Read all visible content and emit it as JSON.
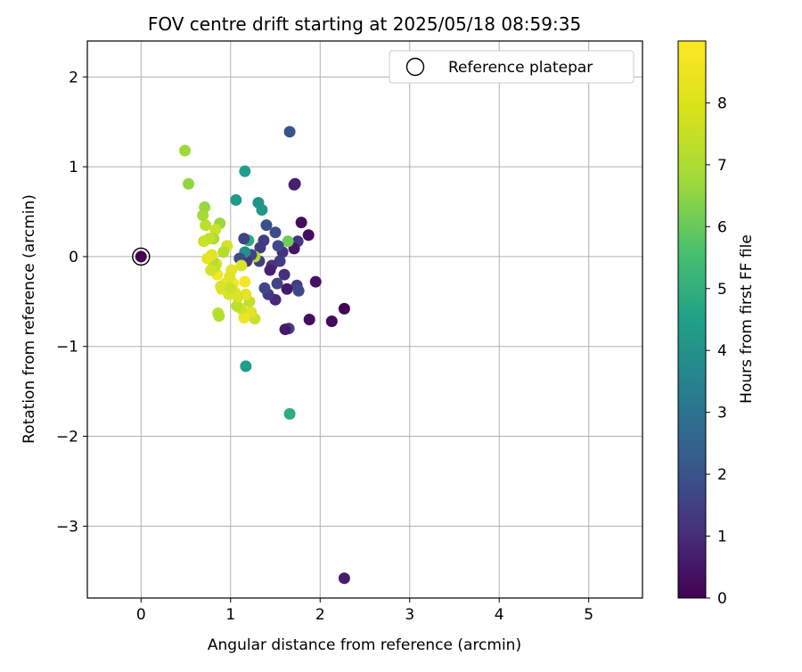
{
  "chart_data": {
    "type": "scatter",
    "title": "FOV centre drift starting at 2025/05/18 08:59:35",
    "xlabel": "Angular distance from reference (arcmin)",
    "ylabel": "Rotation from reference (arcmin)",
    "xlim": [
      -0.6,
      5.6
    ],
    "ylim": [
      -3.8,
      2.4
    ],
    "x_ticks": [
      0,
      1,
      2,
      3,
      4,
      5
    ],
    "x_tick_labels": [
      "0",
      "1",
      "2",
      "3",
      "4",
      "5"
    ],
    "y_ticks": [
      -3,
      -2,
      -1,
      0,
      1,
      2
    ],
    "y_tick_labels": [
      "−3",
      "−2",
      "−1",
      "0",
      "1",
      "2"
    ],
    "grid": true,
    "legend": {
      "placement": "top-right",
      "entries": [
        "Reference platepar"
      ]
    },
    "colorbar": {
      "label": "Hours from first FF file",
      "min": 0,
      "max": 9,
      "ticks": [
        0,
        1,
        2,
        3,
        4,
        5,
        6,
        7,
        8
      ],
      "tick_labels": [
        "0",
        "1",
        "2",
        "3",
        "4",
        "5",
        "6",
        "7",
        "8"
      ],
      "colormap": "viridis"
    },
    "reference_point": {
      "x": 0,
      "y": 0,
      "h": 0
    },
    "points": [
      {
        "x": 2.27,
        "y": -3.58,
        "h": 0.7
      },
      {
        "x": 2.27,
        "y": -0.58,
        "h": 0.1
      },
      {
        "x": 2.13,
        "y": -0.72,
        "h": 0.2
      },
      {
        "x": 1.88,
        "y": -0.7,
        "h": 0.3
      },
      {
        "x": 1.95,
        "y": -0.28,
        "h": 0.4
      },
      {
        "x": 1.87,
        "y": 0.24,
        "h": 0.3
      },
      {
        "x": 1.79,
        "y": 0.38,
        "h": 0.3
      },
      {
        "x": 1.72,
        "y": 0.81,
        "h": 0.5
      },
      {
        "x": 1.71,
        "y": 0.8,
        "h": 0.8
      },
      {
        "x": 1.66,
        "y": 1.39,
        "h": 2.3
      },
      {
        "x": 1.65,
        "y": -0.8,
        "h": 1.8
      },
      {
        "x": 1.61,
        "y": -0.81,
        "h": 0.6
      },
      {
        "x": 1.66,
        "y": -1.75,
        "h": 5.6
      },
      {
        "x": 1.17,
        "y": -1.22,
        "h": 5.0
      },
      {
        "x": 1.75,
        "y": 0.17,
        "h": 1.5
      },
      {
        "x": 1.71,
        "y": 0.09,
        "h": 0.5
      },
      {
        "x": 1.74,
        "y": -0.32,
        "h": 1.7
      },
      {
        "x": 1.76,
        "y": -0.38,
        "h": 1.9
      },
      {
        "x": 1.64,
        "y": 0.17,
        "h": 7.0
      },
      {
        "x": 1.63,
        "y": -0.36,
        "h": 0.6
      },
      {
        "x": 1.6,
        "y": -0.2,
        "h": 1.2
      },
      {
        "x": 1.58,
        "y": 0.05,
        "h": 1.3
      },
      {
        "x": 1.55,
        "y": -0.05,
        "h": 1.6
      },
      {
        "x": 1.52,
        "y": -0.3,
        "h": 1.8
      },
      {
        "x": 1.5,
        "y": -0.48,
        "h": 1.0
      },
      {
        "x": 1.53,
        "y": 0.12,
        "h": 2.0
      },
      {
        "x": 1.5,
        "y": 0.27,
        "h": 2.1
      },
      {
        "x": 1.46,
        "y": -0.1,
        "h": 1.4
      },
      {
        "x": 1.44,
        "y": -0.15,
        "h": 0.8
      },
      {
        "x": 1.42,
        "y": -0.42,
        "h": 1.5
      },
      {
        "x": 1.4,
        "y": 0.35,
        "h": 2.2
      },
      {
        "x": 1.38,
        "y": -0.35,
        "h": 1.9
      },
      {
        "x": 1.37,
        "y": 0.18,
        "h": 1.6
      },
      {
        "x": 1.35,
        "y": 0.52,
        "h": 4.8
      },
      {
        "x": 1.31,
        "y": 0.6,
        "h": 4.6
      },
      {
        "x": 1.33,
        "y": 0.1,
        "h": 1.5
      },
      {
        "x": 1.32,
        "y": -0.05,
        "h": 1.7
      },
      {
        "x": 1.27,
        "y": 0.0,
        "h": 8.0
      },
      {
        "x": 1.23,
        "y": 0.02,
        "h": 1.8
      },
      {
        "x": 1.2,
        "y": 0.18,
        "h": 5.5
      },
      {
        "x": 1.18,
        "y": -0.05,
        "h": 1.4
      },
      {
        "x": 1.16,
        "y": 0.05,
        "h": 4.5
      },
      {
        "x": 1.15,
        "y": 0.2,
        "h": 1.8
      },
      {
        "x": 1.16,
        "y": 0.95,
        "h": 5.0
      },
      {
        "x": 1.06,
        "y": 0.63,
        "h": 4.9
      },
      {
        "x": 1.1,
        "y": -0.02,
        "h": 2.0
      },
      {
        "x": 1.12,
        "y": -0.1,
        "h": 8.5
      },
      {
        "x": 1.27,
        "y": -0.69,
        "h": 8.3
      },
      {
        "x": 1.23,
        "y": -0.62,
        "h": 8.6
      },
      {
        "x": 1.21,
        "y": -0.5,
        "h": 8.2
      },
      {
        "x": 1.17,
        "y": -0.42,
        "h": 8.7
      },
      {
        "x": 1.16,
        "y": -0.28,
        "h": 8.9
      },
      {
        "x": 1.15,
        "y": -0.68,
        "h": 8.8
      },
      {
        "x": 1.12,
        "y": -0.58,
        "h": 8.4
      },
      {
        "x": 1.07,
        "y": -0.55,
        "h": 8.1
      },
      {
        "x": 1.05,
        "y": -0.4,
        "h": 8.6
      },
      {
        "x": 1.03,
        "y": -0.3,
        "h": 8.9
      },
      {
        "x": 1.01,
        "y": -0.15,
        "h": 8.7
      },
      {
        "x": 0.98,
        "y": -0.42,
        "h": 8.5
      },
      {
        "x": 0.96,
        "y": 0.12,
        "h": 8.4
      },
      {
        "x": 0.94,
        "y": -0.3,
        "h": 8.8
      },
      {
        "x": 0.92,
        "y": 0.05,
        "h": 8.0
      },
      {
        "x": 0.9,
        "y": -0.36,
        "h": 8.6
      },
      {
        "x": 0.88,
        "y": 0.37,
        "h": 7.6
      },
      {
        "x": 0.86,
        "y": -0.63,
        "h": 8.1
      },
      {
        "x": 0.85,
        "y": -0.2,
        "h": 8.9
      },
      {
        "x": 0.84,
        "y": -0.08,
        "h": 8.4
      },
      {
        "x": 0.83,
        "y": 0.3,
        "h": 8.3
      },
      {
        "x": 0.82,
        "y": -0.12,
        "h": 8.2
      },
      {
        "x": 0.81,
        "y": 0.2,
        "h": 7.9
      },
      {
        "x": 0.8,
        "y": -0.05,
        "h": 8.0
      },
      {
        "x": 0.79,
        "y": 0.02,
        "h": 8.6
      },
      {
        "x": 0.78,
        "y": -0.15,
        "h": 8.4
      },
      {
        "x": 0.76,
        "y": 0.2,
        "h": 8.2
      },
      {
        "x": 0.74,
        "y": -0.02,
        "h": 8.7
      },
      {
        "x": 0.72,
        "y": 0.35,
        "h": 8.1
      },
      {
        "x": 0.7,
        "y": 0.17,
        "h": 8.3
      },
      {
        "x": 0.71,
        "y": 0.55,
        "h": 7.6
      },
      {
        "x": 0.69,
        "y": 0.46,
        "h": 7.8
      },
      {
        "x": 0.53,
        "y": 0.81,
        "h": 7.5
      },
      {
        "x": 0.49,
        "y": 1.18,
        "h": 7.7
      },
      {
        "x": 0.87,
        "y": -0.66,
        "h": 8.0
      },
      {
        "x": 0.89,
        "y": -0.33,
        "h": 8.5
      },
      {
        "x": 0.99,
        "y": -0.22,
        "h": 8.6
      },
      {
        "x": 1.0,
        "y": -0.35,
        "h": 8.3
      },
      {
        "x": 1.08,
        "y": -0.45,
        "h": 8.5
      }
    ]
  }
}
